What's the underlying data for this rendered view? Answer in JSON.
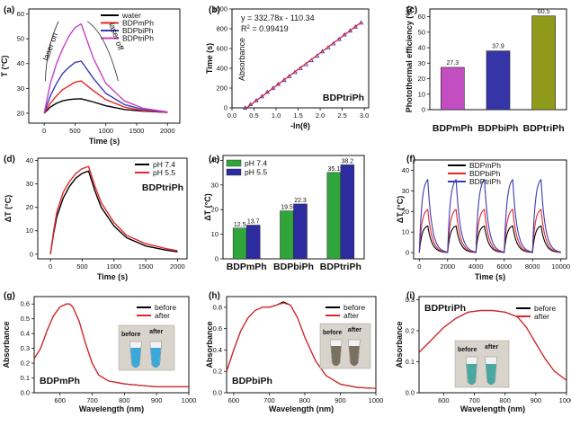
{
  "panels": [
    {
      "label": "(a)",
      "type": "line",
      "xlabel": "Time (s)",
      "ylabel": "T (°C)",
      "xlim": [
        -250,
        2200
      ],
      "ylim": [
        16,
        62
      ],
      "xticks": [
        0,
        500,
        1000,
        1500,
        2000
      ],
      "yticks": [
        20,
        30,
        40,
        50,
        60
      ],
      "legend": {
        "position": "top-right",
        "entries": [
          {
            "name": "water",
            "color": "#000000"
          },
          {
            "name": "BDPmPh",
            "color": "#e3262a"
          },
          {
            "name": "BDPbiPh",
            "color": "#3a3ab8"
          },
          {
            "name": "BDPtriPh",
            "color": "#c442c4"
          }
        ]
      },
      "annotations": [
        "laser on",
        "laser off"
      ],
      "series": [
        {
          "name": "water",
          "color": "#000000",
          "x": [
            0,
            100,
            200,
            300,
            400,
            500,
            600,
            800,
            1000,
            1300,
            1600,
            2000
          ],
          "y": [
            20,
            22.5,
            24,
            25,
            25.5,
            25.7,
            25.8,
            24.5,
            23,
            21.5,
            20.8,
            20.3
          ]
        },
        {
          "name": "BDPmPh",
          "color": "#e3262a",
          "x": [
            0,
            100,
            200,
            300,
            400,
            500,
            600,
            800,
            1000,
            1300,
            1600,
            2000
          ],
          "y": [
            20,
            24,
            27,
            29.5,
            31,
            32.5,
            33,
            29,
            25.5,
            22.5,
            21,
            20.3
          ]
        },
        {
          "name": "BDPbiPh",
          "color": "#3a3ab8",
          "x": [
            0,
            100,
            200,
            300,
            400,
            500,
            600,
            800,
            1000,
            1300,
            1600,
            2000
          ],
          "y": [
            20,
            27,
            32,
            36,
            38.5,
            40.5,
            41,
            34,
            28,
            23.5,
            21.5,
            20.5
          ]
        },
        {
          "name": "BDPtriPh",
          "color": "#c442c4",
          "x": [
            0,
            100,
            200,
            300,
            400,
            500,
            600,
            800,
            1000,
            1300,
            1600,
            2000
          ],
          "y": [
            20,
            32,
            40,
            46,
            51,
            54.5,
            56,
            42,
            32,
            25,
            22,
            20.5
          ]
        }
      ]
    },
    {
      "label": "(b)",
      "type": "scatter",
      "xlabel": "-ln(θ)",
      "ylabel": "Time (s)",
      "xlim": [
        0,
        3.1
      ],
      "ylim": [
        0,
        1000
      ],
      "xticks": [
        0.0,
        0.5,
        1.0,
        1.5,
        2.0,
        2.5,
        3.0
      ],
      "yticks": [
        0,
        200,
        400,
        600,
        800,
        1000
      ],
      "equation": "y = 332.78x - 110.34",
      "r2_prefix": "R",
      "r2_sup": "2",
      "r2_value": " = 0.99419",
      "watermark": "Absorbance",
      "name_label": "BDPtriPh",
      "fit": {
        "slope": 332.78,
        "intercept": -110.34,
        "x_range": [
          0.3,
          2.95
        ]
      },
      "series": [
        {
          "color": "#2a2ad0",
          "x": [
            0.3,
            0.42,
            0.55,
            0.68,
            0.8,
            0.93,
            1.05,
            1.18,
            1.3,
            1.43,
            1.55,
            1.68,
            1.8,
            1.93,
            2.05,
            2.18,
            2.3,
            2.43,
            2.55,
            2.68,
            2.8,
            2.93
          ],
          "y": [
            0,
            35,
            75,
            115,
            160,
            200,
            240,
            280,
            320,
            360,
            400,
            440,
            480,
            525,
            570,
            610,
            650,
            695,
            740,
            780,
            820,
            860
          ]
        }
      ]
    },
    {
      "label": "(c)",
      "type": "bar",
      "ylabel": "Photothermal efficiency (%)",
      "categories": [
        "BDPmPh",
        "BDPbiPh",
        "BDPtriPh"
      ],
      "values": [
        27.3,
        37.9,
        60.5
      ],
      "colors": [
        "#c24ec2",
        "#3535a8",
        "#8f9a1a"
      ],
      "ylim": [
        0,
        65
      ],
      "yticks": [
        0,
        10,
        20,
        30,
        40,
        50,
        60
      ]
    },
    {
      "label": "(d)",
      "type": "line",
      "xlabel": "Time (s)",
      "ylabel": "ΔT (°C)",
      "xlim": [
        -200,
        2150
      ],
      "ylim": [
        -2,
        41
      ],
      "xticks": [
        0,
        500,
        1000,
        1500,
        2000
      ],
      "yticks": [
        0,
        10,
        20,
        30,
        40
      ],
      "name_label": "BDPtriPh",
      "legend": {
        "position": "top-right",
        "entries": [
          {
            "name": "pH 7.4",
            "color": "#000000"
          },
          {
            "name": "pH 5.5",
            "color": "#e3262a"
          }
        ]
      },
      "series": [
        {
          "name": "pH 7.4",
          "color": "#000000",
          "x": [
            0,
            50,
            100,
            200,
            300,
            400,
            500,
            600,
            700,
            800,
            1000,
            1200,
            1500,
            1800,
            2000
          ],
          "y": [
            0,
            9,
            16,
            24,
            29,
            32.5,
            34.5,
            35.5,
            27,
            20,
            12,
            7,
            3.5,
            1.8,
            1
          ]
        },
        {
          "name": "pH 5.5",
          "color": "#e3262a",
          "x": [
            0,
            50,
            100,
            200,
            300,
            400,
            500,
            600,
            700,
            800,
            1000,
            1200,
            1500,
            1800,
            2000
          ],
          "y": [
            0,
            10,
            18,
            26.5,
            31,
            34.5,
            36.5,
            37.5,
            29,
            22,
            13.5,
            8,
            4.5,
            2.5,
            1.5
          ]
        }
      ]
    },
    {
      "label": "(e)",
      "type": "bar",
      "ylabel": "ΔT (°C)",
      "categories": [
        "BDPmPh",
        "BDPbiPh",
        "BDPtriPh"
      ],
      "series": [
        {
          "name": "pH 7.4",
          "color": "#2fa53c",
          "values": [
            12.5,
            19.5,
            35.1
          ]
        },
        {
          "name": "pH 5.5",
          "color": "#2c2ca0",
          "values": [
            13.7,
            22.3,
            38.2
          ]
        }
      ],
      "value_labels": [
        [
          "12.5",
          "19.5",
          "35.1"
        ],
        [
          "13.7",
          "22.3",
          "38.2"
        ]
      ],
      "ylim": [
        0,
        42
      ],
      "yticks": [
        0,
        10,
        20,
        30,
        40
      ],
      "legend": {
        "position": "top-left"
      }
    },
    {
      "label": "(f)",
      "type": "line",
      "xlabel": "Time (s)",
      "ylabel": "ΔT (°C)",
      "xlim": [
        -400,
        10400
      ],
      "ylim": [
        -3,
        45
      ],
      "xticks": [
        0,
        2000,
        4000,
        6000,
        8000,
        10000
      ],
      "yticks": [
        0,
        10,
        20,
        30,
        40
      ],
      "legend": {
        "position": "top-right",
        "entries": [
          {
            "name": "BDPmPh",
            "color": "#000000"
          },
          {
            "name": "BDPbiPh",
            "color": "#e3262a"
          },
          {
            "name": "BDPtriPh",
            "color": "#3a3ab8"
          }
        ]
      },
      "cycles": {
        "count": 5,
        "period": 2000,
        "on_duration": 600
      },
      "series": [
        {
          "name": "BDPmPh",
          "color": "#000000",
          "peak": 13
        },
        {
          "name": "BDPbiPh",
          "color": "#e3262a",
          "peak": 21
        },
        {
          "name": "BDPtriPh",
          "color": "#3a3ab8",
          "peak": 35.5
        }
      ]
    },
    {
      "label": "(g)",
      "type": "line",
      "xlabel": "Wavelength (nm)",
      "ylabel": "Absorbance",
      "xlim": [
        520,
        1000
      ],
      "ylim": [
        0,
        0.65
      ],
      "xticks": [
        600,
        700,
        800,
        900,
        1000
      ],
      "yticks": [
        0.0,
        0.1,
        0.2,
        0.3,
        0.4,
        0.5,
        0.6
      ],
      "name_label": "BDPmPh",
      "inset": {
        "before": "before",
        "after": "after",
        "liquid": "#3aa8d8"
      },
      "legend": {
        "position": "top-right",
        "entries": [
          {
            "name": "before",
            "color": "#000000"
          },
          {
            "name": "after",
            "color": "#e3262a"
          }
        ]
      },
      "series": [
        {
          "name": "before",
          "color": "#000000",
          "x": [
            520,
            540,
            560,
            580,
            600,
            620,
            630,
            640,
            660,
            680,
            700,
            720,
            750,
            800,
            850,
            900,
            1000
          ],
          "y": [
            0.23,
            0.3,
            0.42,
            0.52,
            0.58,
            0.6,
            0.6,
            0.58,
            0.48,
            0.33,
            0.2,
            0.12,
            0.08,
            0.06,
            0.05,
            0.04,
            0.04
          ]
        },
        {
          "name": "after",
          "color": "#e3262a",
          "x": [
            520,
            540,
            560,
            580,
            600,
            620,
            630,
            640,
            660,
            680,
            700,
            720,
            750,
            800,
            850,
            900,
            1000
          ],
          "y": [
            0.23,
            0.3,
            0.42,
            0.52,
            0.58,
            0.6,
            0.6,
            0.58,
            0.48,
            0.33,
            0.2,
            0.12,
            0.08,
            0.06,
            0.05,
            0.04,
            0.04
          ]
        }
      ]
    },
    {
      "label": "(h)",
      "type": "line",
      "xlabel": "Wavelength (nm)",
      "ylabel": "Absorbance",
      "xlim": [
        580,
        1000
      ],
      "ylim": [
        0,
        0.9
      ],
      "xticks": [
        600,
        700,
        800,
        900,
        1000
      ],
      "yticks": [
        0.0,
        0.2,
        0.4,
        0.6,
        0.8
      ],
      "name_label": "BDPbiPh",
      "inset": {
        "before": "before",
        "after": "after",
        "liquid": "#7a7060"
      },
      "legend": {
        "position": "top-right",
        "entries": [
          {
            "name": "before",
            "color": "#000000"
          },
          {
            "name": "after",
            "color": "#e3262a"
          }
        ]
      },
      "series": [
        {
          "name": "before",
          "color": "#000000",
          "x": [
            580,
            600,
            620,
            640,
            660,
            680,
            700,
            720,
            740,
            760,
            780,
            800,
            830,
            860,
            900,
            950,
            1000
          ],
          "y": [
            0.2,
            0.4,
            0.58,
            0.7,
            0.77,
            0.8,
            0.8,
            0.82,
            0.85,
            0.82,
            0.7,
            0.52,
            0.3,
            0.16,
            0.08,
            0.05,
            0.04
          ]
        },
        {
          "name": "after",
          "color": "#e3262a",
          "x": [
            580,
            600,
            620,
            640,
            660,
            680,
            700,
            720,
            740,
            760,
            780,
            800,
            830,
            860,
            900,
            950,
            1000
          ],
          "y": [
            0.2,
            0.4,
            0.58,
            0.7,
            0.77,
            0.8,
            0.8,
            0.82,
            0.84,
            0.82,
            0.7,
            0.52,
            0.3,
            0.16,
            0.08,
            0.05,
            0.04
          ]
        }
      ]
    },
    {
      "label": "(i)",
      "type": "line",
      "xlabel": "Wavelength (nm)",
      "ylabel": "Absorbance",
      "xlim": [
        520,
        1000
      ],
      "ylim": [
        0,
        0.31
      ],
      "xticks": [
        600,
        700,
        800,
        900,
        1000
      ],
      "yticks": [
        0.0,
        0.1,
        0.2,
        0.3
      ],
      "name_label": "BDPtriPh",
      "inset": {
        "before": "before",
        "after": "after",
        "liquid": "#4aa8a0"
      },
      "legend": {
        "position": "top-right",
        "entries": [
          {
            "name": "before",
            "color": "#000000"
          },
          {
            "name": "after",
            "color": "#e3262a"
          }
        ]
      },
      "series": [
        {
          "name": "before",
          "color": "#000000",
          "x": [
            520,
            560,
            600,
            640,
            680,
            720,
            760,
            800,
            840,
            870,
            900,
            930,
            960,
            1000
          ],
          "y": [
            0.13,
            0.17,
            0.21,
            0.24,
            0.26,
            0.265,
            0.265,
            0.26,
            0.245,
            0.21,
            0.16,
            0.11,
            0.07,
            0.04
          ]
        },
        {
          "name": "after",
          "color": "#e3262a",
          "x": [
            520,
            560,
            600,
            640,
            680,
            720,
            760,
            800,
            840,
            870,
            900,
            930,
            960,
            1000
          ],
          "y": [
            0.13,
            0.17,
            0.21,
            0.24,
            0.26,
            0.265,
            0.265,
            0.26,
            0.245,
            0.21,
            0.16,
            0.11,
            0.07,
            0.04
          ]
        }
      ]
    }
  ]
}
